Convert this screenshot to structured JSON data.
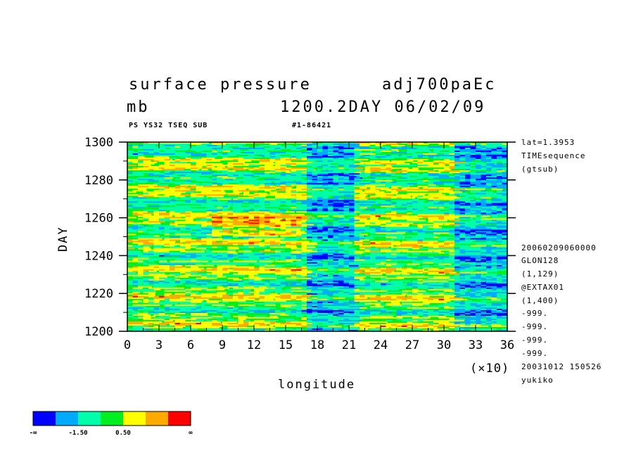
{
  "header": {
    "title_left": "surface pressure",
    "title_right": "adj700paEc",
    "unit": "mb",
    "time_stamp": "1200.2DAY 06/02/09",
    "sub_left": "PS YS32 TSEQ SUB",
    "sub_right": "#1-86421"
  },
  "side_info": {
    "top": [
      "lat=1.3953",
      "TIMEsequence",
      "(gtsub)"
    ],
    "bottom": [
      "20060209060000",
      "GLON128",
      "(1,129)",
      "@EXTAX01",
      "(1,400)",
      "-999.",
      "-999.",
      "-999.",
      "-999.",
      "20031012 150526",
      "yukiko"
    ]
  },
  "colors": {
    "levels": [
      "#0000ff",
      "#00aaff",
      "#00ffaa",
      "#00ee22",
      "#ffff00",
      "#ffaa00",
      "#ff0000"
    ],
    "background": "#00ee22"
  },
  "colorbar": {
    "labels": [
      "-∞",
      "-1.50",
      "0.50",
      "∞"
    ]
  },
  "chart_data": {
    "type": "heatmap",
    "title": "surface pressure",
    "xlabel": "longitude",
    "xlabel_multiplier": "(×10)",
    "ylabel": "DAY",
    "xlim": [
      0,
      36
    ],
    "ylim": [
      1200,
      1300
    ],
    "x_ticks": [
      "0",
      "3",
      "6",
      "9",
      "12",
      "15",
      "18",
      "21",
      "24",
      "27",
      "30",
      "33",
      "36"
    ],
    "y_ticks": [
      "1200",
      "1220",
      "1240",
      "1260",
      "1280",
      "1300"
    ],
    "notable_features": [
      {
        "label": "low",
        "x_range": [
          17,
          21
        ],
        "y_range": [
          1200,
          1300
        ]
      },
      {
        "label": "low",
        "x_range": [
          31,
          36
        ],
        "y_range": [
          1200,
          1300
        ]
      },
      {
        "label": "high",
        "x_range": [
          8,
          16
        ],
        "y_range": [
          1250,
          1260
        ]
      }
    ]
  }
}
